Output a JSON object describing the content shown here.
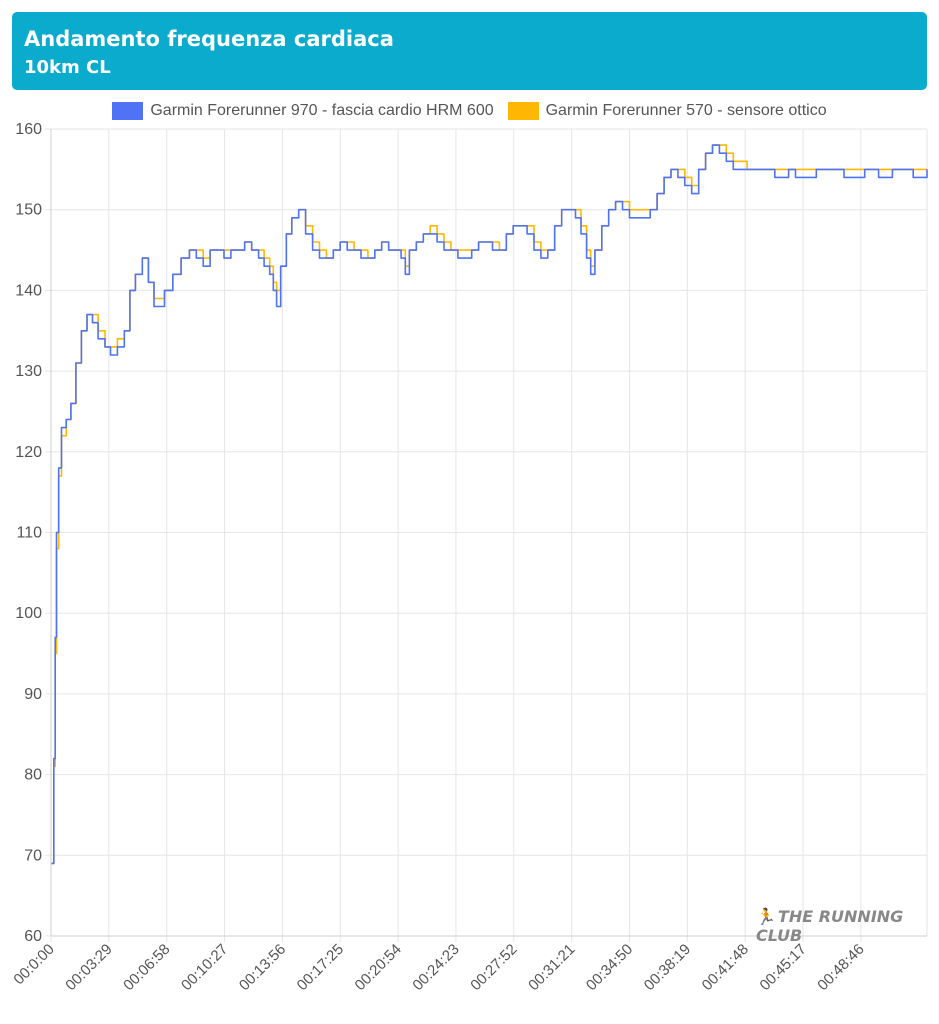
{
  "header": {
    "title": "Andamento frequenza cardiaca",
    "subtitle": "10km CL"
  },
  "legend": {
    "items": [
      {
        "label": "Garmin Forerunner 970 - fascia cardio HRM 600",
        "color": "#4f73f4"
      },
      {
        "label": "Garmin Forerunner 570 - sensore ottico",
        "color": "#ffb703"
      }
    ]
  },
  "watermark": {
    "text": "THE RUNNING CLUB",
    "icon": "runners-icon"
  },
  "colors": {
    "series1": "#4f73f4",
    "series2": "#ffb703",
    "grid": "#e6e6e6",
    "tick": "#555555",
    "header": "#0aabcc"
  },
  "chart_data": {
    "type": "line",
    "title": "Andamento frequenza cardiaca",
    "subtitle": "10km CL",
    "legend_position": "top",
    "grid": true,
    "ylim": [
      60,
      160
    ],
    "yticks": [
      60,
      70,
      80,
      90,
      100,
      110,
      120,
      130,
      140,
      150,
      160
    ],
    "xlim": [
      0,
      3165
    ],
    "xticks": [
      {
        "t": 0,
        "label": "00:0:00"
      },
      {
        "t": 209,
        "label": "00:03:29"
      },
      {
        "t": 418,
        "label": "00:06:58"
      },
      {
        "t": 627,
        "label": "00:10:27"
      },
      {
        "t": 836,
        "label": "00:13:56"
      },
      {
        "t": 1045,
        "label": "00:17:25"
      },
      {
        "t": 1254,
        "label": "00:20:54"
      },
      {
        "t": 1463,
        "label": "00:24:23"
      },
      {
        "t": 1672,
        "label": "00:27:52"
      },
      {
        "t": 1881,
        "label": "00:31:21"
      },
      {
        "t": 2090,
        "label": "00:34:50"
      },
      {
        "t": 2299,
        "label": "00:38:19"
      },
      {
        "t": 2508,
        "label": "00:41:48"
      },
      {
        "t": 2717,
        "label": "00:45:17"
      },
      {
        "t": 2926,
        "label": "00:48:46"
      }
    ],
    "series": [
      {
        "name": "Garmin Forerunner 970 - fascia cardio HRM 600",
        "points": [
          [
            0,
            69
          ],
          [
            5,
            69
          ],
          [
            10,
            82
          ],
          [
            15,
            97
          ],
          [
            20,
            110
          ],
          [
            28,
            118
          ],
          [
            38,
            123
          ],
          [
            55,
            124
          ],
          [
            72,
            126
          ],
          [
            90,
            131
          ],
          [
            110,
            135
          ],
          [
            130,
            137
          ],
          [
            150,
            136
          ],
          [
            170,
            134
          ],
          [
            195,
            133
          ],
          [
            215,
            132
          ],
          [
            240,
            133
          ],
          [
            265,
            135
          ],
          [
            285,
            140
          ],
          [
            305,
            142
          ],
          [
            330,
            144
          ],
          [
            352,
            141
          ],
          [
            372,
            138
          ],
          [
            392,
            138
          ],
          [
            410,
            140
          ],
          [
            440,
            142
          ],
          [
            470,
            144
          ],
          [
            500,
            145
          ],
          [
            525,
            144
          ],
          [
            550,
            143
          ],
          [
            575,
            145
          ],
          [
            600,
            145
          ],
          [
            625,
            144
          ],
          [
            650,
            145
          ],
          [
            675,
            145
          ],
          [
            700,
            146
          ],
          [
            725,
            145
          ],
          [
            750,
            144
          ],
          [
            770,
            143
          ],
          [
            790,
            142
          ],
          [
            803,
            140
          ],
          [
            815,
            138
          ],
          [
            830,
            143
          ],
          [
            850,
            147
          ],
          [
            870,
            149
          ],
          [
            895,
            150
          ],
          [
            920,
            147
          ],
          [
            945,
            145
          ],
          [
            970,
            144
          ],
          [
            995,
            144
          ],
          [
            1020,
            145
          ],
          [
            1045,
            146
          ],
          [
            1070,
            145
          ],
          [
            1095,
            145
          ],
          [
            1120,
            144
          ],
          [
            1145,
            144
          ],
          [
            1170,
            145
          ],
          [
            1195,
            146
          ],
          [
            1220,
            145
          ],
          [
            1245,
            145
          ],
          [
            1265,
            144
          ],
          [
            1280,
            142
          ],
          [
            1295,
            145
          ],
          [
            1320,
            146
          ],
          [
            1345,
            147
          ],
          [
            1370,
            147
          ],
          [
            1395,
            146
          ],
          [
            1420,
            145
          ],
          [
            1445,
            145
          ],
          [
            1470,
            144
          ],
          [
            1495,
            144
          ],
          [
            1520,
            145
          ],
          [
            1545,
            146
          ],
          [
            1570,
            146
          ],
          [
            1595,
            145
          ],
          [
            1620,
            145
          ],
          [
            1645,
            147
          ],
          [
            1670,
            148
          ],
          [
            1695,
            148
          ],
          [
            1720,
            147
          ],
          [
            1745,
            145
          ],
          [
            1770,
            144
          ],
          [
            1795,
            145
          ],
          [
            1820,
            148
          ],
          [
            1845,
            150
          ],
          [
            1870,
            150
          ],
          [
            1895,
            149
          ],
          [
            1915,
            147
          ],
          [
            1935,
            144
          ],
          [
            1950,
            142
          ],
          [
            1965,
            145
          ],
          [
            1990,
            148
          ],
          [
            2015,
            150
          ],
          [
            2040,
            151
          ],
          [
            2065,
            150
          ],
          [
            2090,
            149
          ],
          [
            2115,
            149
          ],
          [
            2140,
            149
          ],
          [
            2165,
            150
          ],
          [
            2190,
            152
          ],
          [
            2215,
            154
          ],
          [
            2240,
            155
          ],
          [
            2265,
            154
          ],
          [
            2290,
            153
          ],
          [
            2315,
            152
          ],
          [
            2340,
            155
          ],
          [
            2365,
            157
          ],
          [
            2390,
            158
          ],
          [
            2415,
            157
          ],
          [
            2440,
            156
          ],
          [
            2465,
            155
          ],
          [
            2490,
            155
          ],
          [
            2515,
            155
          ],
          [
            2540,
            155
          ],
          [
            2565,
            155
          ],
          [
            2590,
            155
          ],
          [
            2615,
            154
          ],
          [
            2640,
            154
          ],
          [
            2665,
            155
          ],
          [
            2690,
            154
          ],
          [
            2715,
            154
          ],
          [
            2740,
            154
          ],
          [
            2765,
            155
          ],
          [
            2790,
            155
          ],
          [
            2815,
            155
          ],
          [
            2840,
            155
          ],
          [
            2865,
            154
          ],
          [
            2890,
            154
          ],
          [
            2915,
            154
          ],
          [
            2940,
            155
          ],
          [
            2965,
            155
          ],
          [
            2990,
            154
          ],
          [
            3015,
            154
          ],
          [
            3040,
            155
          ],
          [
            3065,
            155
          ],
          [
            3090,
            155
          ],
          [
            3115,
            154
          ],
          [
            3140,
            154
          ],
          [
            3165,
            155
          ]
        ]
      },
      {
        "name": "Garmin Forerunner 570 - sensore ottico",
        "points": [
          [
            0,
            69
          ],
          [
            5,
            69
          ],
          [
            10,
            81
          ],
          [
            15,
            95
          ],
          [
            20,
            108
          ],
          [
            28,
            117
          ],
          [
            38,
            122
          ],
          [
            55,
            124
          ],
          [
            72,
            126
          ],
          [
            90,
            131
          ],
          [
            110,
            135
          ],
          [
            130,
            137
          ],
          [
            150,
            137
          ],
          [
            170,
            135
          ],
          [
            195,
            133
          ],
          [
            215,
            133
          ],
          [
            240,
            134
          ],
          [
            265,
            135
          ],
          [
            285,
            140
          ],
          [
            305,
            142
          ],
          [
            330,
            144
          ],
          [
            352,
            141
          ],
          [
            372,
            139
          ],
          [
            392,
            139
          ],
          [
            410,
            140
          ],
          [
            440,
            142
          ],
          [
            470,
            144
          ],
          [
            500,
            145
          ],
          [
            525,
            145
          ],
          [
            550,
            144
          ],
          [
            575,
            145
          ],
          [
            600,
            145
          ],
          [
            625,
            145
          ],
          [
            650,
            145
          ],
          [
            675,
            145
          ],
          [
            700,
            146
          ],
          [
            725,
            145
          ],
          [
            750,
            145
          ],
          [
            770,
            144
          ],
          [
            790,
            143
          ],
          [
            803,
            141
          ],
          [
            815,
            140
          ],
          [
            830,
            143
          ],
          [
            850,
            147
          ],
          [
            870,
            149
          ],
          [
            895,
            150
          ],
          [
            920,
            148
          ],
          [
            945,
            146
          ],
          [
            970,
            145
          ],
          [
            995,
            144
          ],
          [
            1020,
            145
          ],
          [
            1045,
            146
          ],
          [
            1070,
            146
          ],
          [
            1095,
            145
          ],
          [
            1120,
            145
          ],
          [
            1145,
            144
          ],
          [
            1170,
            145
          ],
          [
            1195,
            146
          ],
          [
            1220,
            145
          ],
          [
            1245,
            145
          ],
          [
            1265,
            145
          ],
          [
            1280,
            143
          ],
          [
            1295,
            145
          ],
          [
            1320,
            146
          ],
          [
            1345,
            147
          ],
          [
            1370,
            148
          ],
          [
            1395,
            147
          ],
          [
            1420,
            146
          ],
          [
            1445,
            145
          ],
          [
            1470,
            145
          ],
          [
            1495,
            145
          ],
          [
            1520,
            145
          ],
          [
            1545,
            146
          ],
          [
            1570,
            146
          ],
          [
            1595,
            146
          ],
          [
            1620,
            145
          ],
          [
            1645,
            147
          ],
          [
            1670,
            148
          ],
          [
            1695,
            148
          ],
          [
            1720,
            148
          ],
          [
            1745,
            146
          ],
          [
            1770,
            145
          ],
          [
            1795,
            145
          ],
          [
            1820,
            148
          ],
          [
            1845,
            150
          ],
          [
            1870,
            150
          ],
          [
            1895,
            150
          ],
          [
            1915,
            148
          ],
          [
            1935,
            145
          ],
          [
            1950,
            143
          ],
          [
            1965,
            145
          ],
          [
            1990,
            148
          ],
          [
            2015,
            150
          ],
          [
            2040,
            151
          ],
          [
            2065,
            151
          ],
          [
            2090,
            150
          ],
          [
            2115,
            150
          ],
          [
            2140,
            150
          ],
          [
            2165,
            150
          ],
          [
            2190,
            152
          ],
          [
            2215,
            154
          ],
          [
            2240,
            155
          ],
          [
            2265,
            155
          ],
          [
            2290,
            154
          ],
          [
            2315,
            153
          ],
          [
            2340,
            155
          ],
          [
            2365,
            157
          ],
          [
            2390,
            158
          ],
          [
            2415,
            158
          ],
          [
            2440,
            157
          ],
          [
            2465,
            156
          ],
          [
            2490,
            156
          ],
          [
            2515,
            155
          ],
          [
            2540,
            155
          ],
          [
            2565,
            155
          ],
          [
            2590,
            155
          ],
          [
            2615,
            155
          ],
          [
            2640,
            155
          ],
          [
            2665,
            155
          ],
          [
            2690,
            155
          ],
          [
            2715,
            155
          ],
          [
            2740,
            155
          ],
          [
            2765,
            155
          ],
          [
            2790,
            155
          ],
          [
            2815,
            155
          ],
          [
            2840,
            155
          ],
          [
            2865,
            155
          ],
          [
            2890,
            155
          ],
          [
            2915,
            155
          ],
          [
            2940,
            155
          ],
          [
            2965,
            155
          ],
          [
            2990,
            155
          ],
          [
            3015,
            155
          ],
          [
            3040,
            155
          ],
          [
            3065,
            155
          ],
          [
            3090,
            155
          ],
          [
            3115,
            155
          ],
          [
            3140,
            155
          ],
          [
            3165,
            155
          ]
        ]
      }
    ]
  }
}
